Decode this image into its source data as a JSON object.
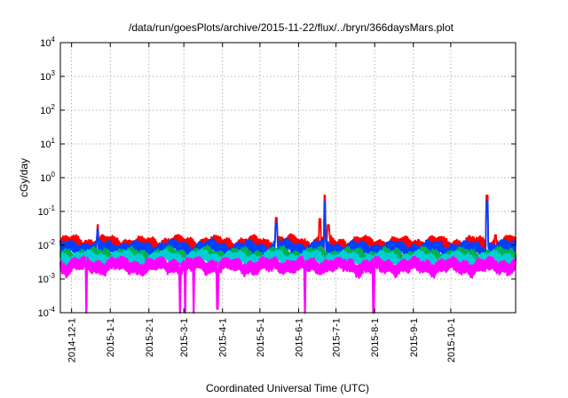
{
  "chart_data": {
    "type": "line",
    "title": "/data/run/goesPlots/archive/2015-11-22/flux/../bryn/366daysMars.plot",
    "xlabel": "Coordinated Universal Time (UTC)",
    "ylabel": "cGy/day",
    "x_range": [
      "2014-11-22",
      "2015-11-22"
    ],
    "y_scale": "log",
    "ylim": [
      0.0001,
      10000
    ],
    "grid": true,
    "x_ticks": [
      "2014-12-1",
      "2015-1-1",
      "2015-2-1",
      "2015-3-1",
      "2015-4-1",
      "2015-5-1",
      "2015-6-1",
      "2015-7-1",
      "2015-8-1",
      "2015-9-1",
      "2015-10-1"
    ],
    "y_ticks": [
      {
        "value": 0.0001,
        "base": "10",
        "exp": "-4"
      },
      {
        "value": 0.001,
        "base": "10",
        "exp": "-3"
      },
      {
        "value": 0.01,
        "base": "10",
        "exp": "-2"
      },
      {
        "value": 0.1,
        "base": "10",
        "exp": "-1"
      },
      {
        "value": 1,
        "base": "10",
        "exp": "0"
      },
      {
        "value": 10,
        "base": "10",
        "exp": "1"
      },
      {
        "value": 100,
        "base": "10",
        "exp": "2"
      },
      {
        "value": 1000,
        "base": "10",
        "exp": "3"
      },
      {
        "value": 10000,
        "base": "10",
        "exp": "4"
      }
    ],
    "series": [
      {
        "color": "#ff0000",
        "x": [
          "2014-11-22",
          "2014-12-05",
          "2014-12-20",
          "2015-01-05",
          "2015-01-20",
          "2015-02-05",
          "2015-02-20",
          "2015-03-05",
          "2015-03-20",
          "2015-04-05",
          "2015-04-20",
          "2015-05-05",
          "2015-05-20",
          "2015-06-05",
          "2015-06-20",
          "2015-07-05",
          "2015-07-20",
          "2015-08-05",
          "2015-08-20",
          "2015-09-05",
          "2015-09-20",
          "2015-10-05",
          "2015-10-20",
          "2015-11-05",
          "2015-11-22"
        ],
        "y": [
          0.011,
          0.012,
          0.011,
          0.012,
          0.011,
          0.011,
          0.012,
          0.011,
          0.012,
          0.011,
          0.011,
          0.011,
          0.012,
          0.011,
          0.012,
          0.011,
          0.011,
          0.011,
          0.011,
          0.011,
          0.011,
          0.011,
          0.011,
          0.011,
          0.012
        ],
        "spikes": [
          {
            "x": "2014-12-22",
            "y": 0.04
          },
          {
            "x": "2015-05-14",
            "y": 0.065
          },
          {
            "x": "2015-06-18",
            "y": 0.06
          },
          {
            "x": "2015-06-22",
            "y": 0.3
          },
          {
            "x": "2015-06-25",
            "y": 0.04
          },
          {
            "x": "2015-10-30",
            "y": 0.3
          },
          {
            "x": "2015-11-06",
            "y": 0.02
          }
        ]
      },
      {
        "color": "#0040ff",
        "x": [
          "2014-11-22",
          "2014-12-05",
          "2014-12-20",
          "2015-01-05",
          "2015-01-20",
          "2015-02-05",
          "2015-02-20",
          "2015-03-05",
          "2015-03-20",
          "2015-04-05",
          "2015-04-20",
          "2015-05-05",
          "2015-05-20",
          "2015-06-05",
          "2015-06-20",
          "2015-07-05",
          "2015-07-20",
          "2015-08-05",
          "2015-08-20",
          "2015-09-05",
          "2015-09-20",
          "2015-10-05",
          "2015-10-20",
          "2015-11-05",
          "2015-11-22"
        ],
        "y": [
          0.008,
          0.009,
          0.008,
          0.009,
          0.008,
          0.008,
          0.009,
          0.008,
          0.009,
          0.008,
          0.008,
          0.008,
          0.009,
          0.008,
          0.009,
          0.008,
          0.008,
          0.008,
          0.008,
          0.008,
          0.008,
          0.008,
          0.008,
          0.008,
          0.009
        ],
        "spikes": [
          {
            "x": "2014-12-22",
            "y": 0.03
          },
          {
            "x": "2015-05-14",
            "y": 0.045
          },
          {
            "x": "2015-06-22",
            "y": 0.2
          },
          {
            "x": "2015-10-30",
            "y": 0.2
          }
        ]
      },
      {
        "color": "#00b050",
        "x": [
          "2014-11-22",
          "2014-12-05",
          "2014-12-20",
          "2015-01-05",
          "2015-01-20",
          "2015-02-05",
          "2015-02-20",
          "2015-03-05",
          "2015-03-20",
          "2015-04-05",
          "2015-04-20",
          "2015-05-05",
          "2015-05-20",
          "2015-06-05",
          "2015-06-20",
          "2015-07-05",
          "2015-07-20",
          "2015-08-05",
          "2015-08-20",
          "2015-09-05",
          "2015-09-20",
          "2015-10-05",
          "2015-10-20",
          "2015-11-05",
          "2015-11-22"
        ],
        "y": [
          0.005,
          0.0055,
          0.005,
          0.0055,
          0.005,
          0.005,
          0.0055,
          0.005,
          0.0055,
          0.005,
          0.005,
          0.005,
          0.0055,
          0.005,
          0.0055,
          0.005,
          0.005,
          0.005,
          0.005,
          0.005,
          0.005,
          0.005,
          0.005,
          0.005,
          0.0055
        ],
        "spikes": []
      },
      {
        "color": "#00d0d0",
        "x": [
          "2014-11-22",
          "2014-12-05",
          "2014-12-20",
          "2015-01-05",
          "2015-01-20",
          "2015-02-05",
          "2015-02-20",
          "2015-03-05",
          "2015-03-20",
          "2015-04-05",
          "2015-04-20",
          "2015-05-05",
          "2015-05-20",
          "2015-06-05",
          "2015-06-20",
          "2015-07-05",
          "2015-07-20",
          "2015-08-05",
          "2015-08-20",
          "2015-09-05",
          "2015-09-20",
          "2015-10-05",
          "2015-10-20",
          "2015-11-05",
          "2015-11-22"
        ],
        "y": [
          0.004,
          0.0045,
          0.004,
          0.0045,
          0.004,
          0.004,
          0.0045,
          0.004,
          0.0045,
          0.004,
          0.004,
          0.004,
          0.0045,
          0.004,
          0.0045,
          0.004,
          0.004,
          0.004,
          0.004,
          0.004,
          0.004,
          0.004,
          0.004,
          0.004,
          0.0045
        ],
        "spikes": []
      },
      {
        "color": "#ff00ff",
        "x": [
          "2014-11-22",
          "2014-12-05",
          "2014-12-20",
          "2015-01-05",
          "2015-01-20",
          "2015-02-05",
          "2015-02-20",
          "2015-03-05",
          "2015-03-20",
          "2015-04-05",
          "2015-04-20",
          "2015-05-05",
          "2015-05-20",
          "2015-06-05",
          "2015-06-20",
          "2015-07-05",
          "2015-07-20",
          "2015-08-05",
          "2015-08-20",
          "2015-09-05",
          "2015-09-20",
          "2015-10-05",
          "2015-10-20",
          "2015-11-05",
          "2015-11-22"
        ],
        "y": [
          0.0025,
          0.0028,
          0.0025,
          0.0028,
          0.0025,
          0.0025,
          0.0028,
          0.0025,
          0.0028,
          0.0025,
          0.0025,
          0.0025,
          0.0028,
          0.0025,
          0.0028,
          0.0025,
          0.0025,
          0.0025,
          0.0025,
          0.0025,
          0.0025,
          0.0025,
          0.0025,
          0.0025,
          0.0028
        ],
        "spikes": [],
        "dropouts": [
          {
            "x": "2014-12-13",
            "y": 0.0001
          },
          {
            "x": "2015-02-26",
            "y": 0.0001
          },
          {
            "x": "2015-03-02",
            "y": 0.0001
          },
          {
            "x": "2015-03-09",
            "y": 0.0001
          },
          {
            "x": "2015-03-28",
            "y": 0.00013
          },
          {
            "x": "2015-06-06",
            "y": 0.0001
          },
          {
            "x": "2015-07-31",
            "y": 0.0001
          }
        ]
      }
    ]
  }
}
